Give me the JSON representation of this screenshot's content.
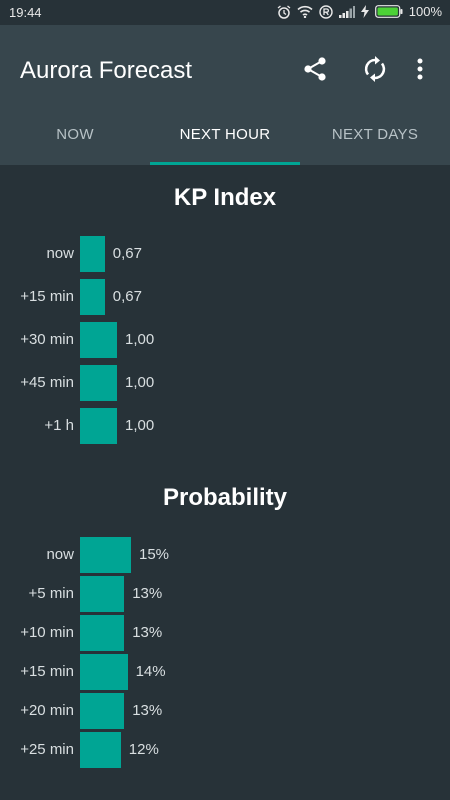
{
  "status_bar": {
    "time": "19:44",
    "battery": "100%",
    "icons": [
      "alarm-icon",
      "wifi-icon",
      "r-icon",
      "signal-icon",
      "charging-icon",
      "battery-icon"
    ]
  },
  "app_bar": {
    "title": "Aurora Forecast",
    "actions": [
      "share-icon",
      "refresh-icon",
      "more-icon"
    ]
  },
  "tabs": [
    {
      "label": "NOW",
      "active": false
    },
    {
      "label": "NEXT HOUR",
      "active": true
    },
    {
      "label": "NEXT DAYS",
      "active": false
    }
  ],
  "kp": {
    "title": "KP Index",
    "rows": [
      {
        "label": "now",
        "value": 0.67,
        "text": "0,67"
      },
      {
        "label": "+15 min",
        "value": 0.67,
        "text": "0,67"
      },
      {
        "label": "+30 min",
        "value": 1.0,
        "text": "1,00"
      },
      {
        "label": "+45 min",
        "value": 1.0,
        "text": "1,00"
      },
      {
        "label": "+1 h",
        "value": 1.0,
        "text": "1,00"
      }
    ]
  },
  "probability": {
    "title": "Probability",
    "rows": [
      {
        "label": "now",
        "value": 15,
        "text": "15%"
      },
      {
        "label": "+5 min",
        "value": 13,
        "text": "13%"
      },
      {
        "label": "+10 min",
        "value": 13,
        "text": "13%"
      },
      {
        "label": "+15 min",
        "value": 14,
        "text": "14%"
      },
      {
        "label": "+20 min",
        "value": 13,
        "text": "13%"
      },
      {
        "label": "+25 min",
        "value": 12,
        "text": "12%"
      }
    ]
  },
  "colors": {
    "accent": "#00a594",
    "background": "#273238",
    "app_bar": "#37464d"
  }
}
